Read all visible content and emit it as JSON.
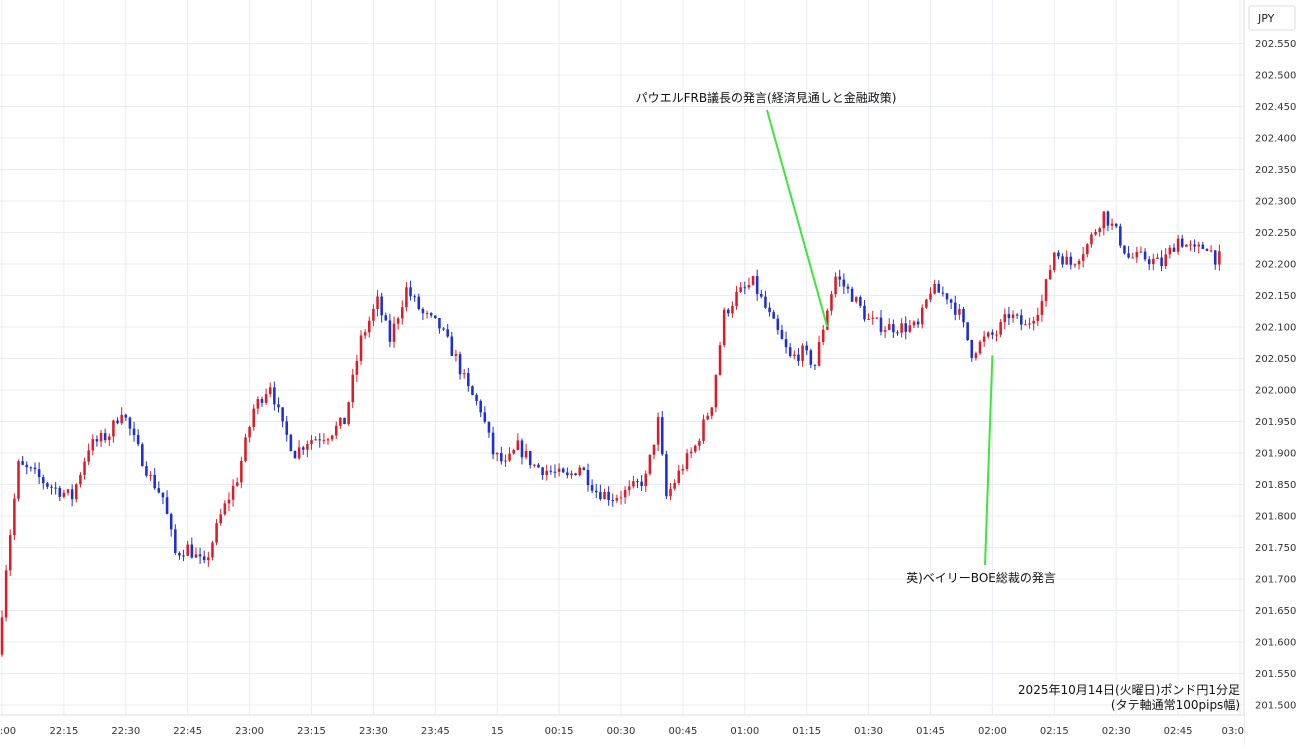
{
  "chart_data": {
    "type": "candlestick",
    "currency_label": "JPY",
    "ylim": [
      201.5,
      202.6
    ],
    "y_ticks": [
      "202.550",
      "202.500",
      "202.450",
      "202.400",
      "202.350",
      "202.300",
      "202.250",
      "202.200",
      "202.150",
      "202.100",
      "202.050",
      "202.000",
      "201.950",
      "201.900",
      "201.850",
      "201.800",
      "201.750",
      "201.700",
      "201.650",
      "201.600",
      "201.550",
      "201.500"
    ],
    "x_ticks": [
      ":00",
      "22:15",
      "22:30",
      "22:45",
      "23:00",
      "23:15",
      "23:30",
      "23:45",
      "15",
      "00:15",
      "00:30",
      "00:45",
      "01:00",
      "01:15",
      "01:30",
      "01:45",
      "02:00",
      "02:15",
      "02:30",
      "02:45",
      "03:0"
    ],
    "x_range": [
      "22:00",
      "03:00"
    ],
    "grid": true,
    "up_color": "#d91e2a",
    "down_color": "#1e2fd1",
    "annotation_line_color": "#3ee53a",
    "anchors": [
      [
        "22:00",
        201.58
      ],
      [
        "22:02",
        201.72
      ],
      [
        "22:05",
        201.88
      ],
      [
        "22:08",
        201.87
      ],
      [
        "22:12",
        201.85
      ],
      [
        "22:18",
        201.83
      ],
      [
        "22:22",
        201.91
      ],
      [
        "22:27",
        201.93
      ],
      [
        "22:30",
        201.97
      ],
      [
        "22:33",
        201.92
      ],
      [
        "22:37",
        201.86
      ],
      [
        "22:40",
        201.83
      ],
      [
        "22:43",
        201.74
      ],
      [
        "22:46",
        201.75
      ],
      [
        "22:50",
        201.72
      ],
      [
        "22:54",
        201.8
      ],
      [
        "22:58",
        201.86
      ],
      [
        "23:02",
        201.97
      ],
      [
        "23:06",
        202.01
      ],
      [
        "23:09",
        201.94
      ],
      [
        "23:12",
        201.9
      ],
      [
        "23:15",
        201.92
      ],
      [
        "23:20",
        201.93
      ],
      [
        "23:24",
        201.95
      ],
      [
        "23:28",
        202.08
      ],
      [
        "23:32",
        202.14
      ],
      [
        "23:35",
        202.08
      ],
      [
        "23:39",
        202.16
      ],
      [
        "23:43",
        202.12
      ],
      [
        "23:47",
        202.1
      ],
      [
        "23:51",
        202.05
      ],
      [
        "23:54",
        202.0
      ],
      [
        "23:57",
        201.97
      ],
      [
        "0:00",
        201.9
      ],
      [
        "0:03",
        201.88
      ],
      [
        "0:06",
        201.91
      ],
      [
        "0:10",
        201.88
      ],
      [
        "0:14",
        201.87
      ],
      [
        "0:18",
        201.86
      ],
      [
        "0:21",
        201.88
      ],
      [
        "0:25",
        201.84
      ],
      [
        "0:29",
        201.83
      ],
      [
        "0:33",
        201.84
      ],
      [
        "0:37",
        201.86
      ],
      [
        "0:40",
        201.95
      ],
      [
        "0:42",
        201.83
      ],
      [
        "0:46",
        201.88
      ],
      [
        "0:49",
        201.91
      ],
      [
        "0:53",
        201.98
      ],
      [
        "0:56",
        202.12
      ],
      [
        "0:59",
        202.15
      ],
      [
        "1:03",
        202.17
      ],
      [
        "1:06",
        202.13
      ],
      [
        "1:09",
        202.09
      ],
      [
        "1:12",
        202.05
      ],
      [
        "1:15",
        202.06
      ],
      [
        "1:18",
        202.04
      ],
      [
        "1:21",
        202.13
      ],
      [
        "1:23",
        202.18
      ],
      [
        "1:27",
        202.15
      ],
      [
        "1:31",
        202.11
      ],
      [
        "1:35",
        202.1
      ],
      [
        "1:39",
        202.1
      ],
      [
        "1:43",
        202.1
      ],
      [
        "1:46",
        202.16
      ],
      [
        "1:50",
        202.15
      ],
      [
        "1:53",
        202.12
      ],
      [
        "1:56",
        202.06
      ],
      [
        "1:59",
        202.08
      ],
      [
        "2:02",
        202.09
      ],
      [
        "2:05",
        202.12
      ],
      [
        "2:09",
        202.1
      ],
      [
        "2:13",
        202.14
      ],
      [
        "2:16",
        202.22
      ],
      [
        "2:20",
        202.2
      ],
      [
        "2:24",
        202.23
      ],
      [
        "2:28",
        202.28
      ],
      [
        "2:31",
        202.25
      ],
      [
        "2:34",
        202.21
      ],
      [
        "2:38",
        202.21
      ],
      [
        "2:42",
        202.2
      ],
      [
        "2:46",
        202.24
      ],
      [
        "2:50",
        202.22
      ],
      [
        "2:53",
        202.23
      ],
      [
        "2:55",
        202.21
      ]
    ]
  },
  "annotations": [
    {
      "text": "パウエルFRB議長の発言(経済見通しと金融政策)",
      "time": "01:20",
      "price": 202.1
    },
    {
      "text": "英)ベイリーBOE総裁の発言",
      "time": "02:00",
      "price": 202.055
    }
  ],
  "caption": {
    "line1": "2025年10月14日(火曜日)ポンド円1分足",
    "line2": "(タテ軸通常100pips幅)"
  }
}
